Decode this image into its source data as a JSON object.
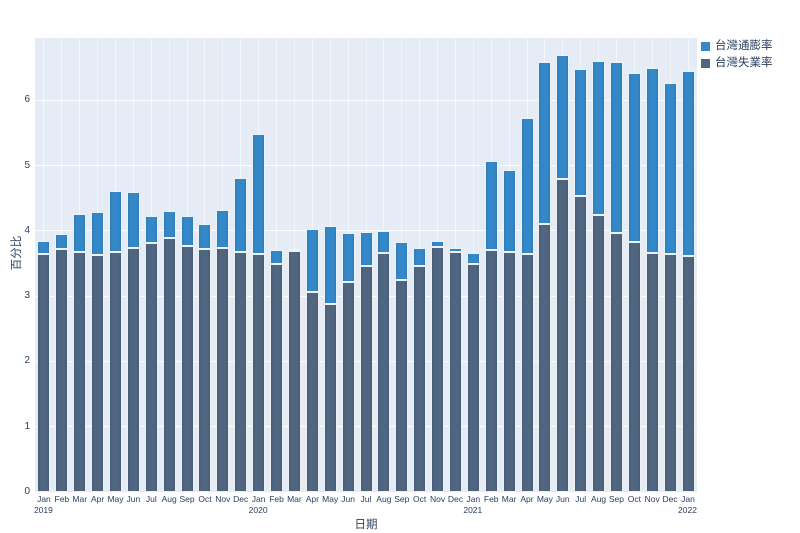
{
  "axes": {
    "x_title": "日期",
    "y_title": "百分比"
  },
  "legend": {
    "items": [
      {
        "label": "台灣通膨率",
        "color": "#3488c8"
      },
      {
        "label": "台灣失業率",
        "color": "#50657f"
      }
    ]
  },
  "chart_data": {
    "type": "bar",
    "barmode": "stack",
    "title": "",
    "xlabel": "日期",
    "ylabel": "百分比",
    "ylim": [
      0,
      6.953
    ],
    "yticks": [
      0,
      1,
      2,
      3,
      4,
      5,
      6
    ],
    "grid": true,
    "legend_position": "top-right-outside",
    "plot_bg": "#e5ecf6",
    "grid_color": "#ffffff",
    "text_color": "#2a3f5f",
    "x": [
      "2019-01",
      "2019-02",
      "2019-03",
      "2019-04",
      "2019-05",
      "2019-06",
      "2019-07",
      "2019-08",
      "2019-09",
      "2019-10",
      "2019-11",
      "2019-12",
      "2020-01",
      "2020-02",
      "2020-03",
      "2020-04",
      "2020-05",
      "2020-06",
      "2020-07",
      "2020-08",
      "2020-09",
      "2020-10",
      "2020-11",
      "2020-12",
      "2021-01",
      "2021-02",
      "2021-03",
      "2021-04",
      "2021-05",
      "2021-06",
      "2021-07",
      "2021-08",
      "2021-09",
      "2021-10",
      "2021-11",
      "2021-12",
      "2022-01"
    ],
    "x_tick_labels": [
      "Jan",
      "Feb",
      "Mar",
      "Apr",
      "May",
      "Jun",
      "Jul",
      "Aug",
      "Sep",
      "Oct",
      "Nov",
      "Dec",
      "Jan",
      "Feb",
      "Mar",
      "Apr",
      "May",
      "Jun",
      "Jul",
      "Aug",
      "Sep",
      "Oct",
      "Nov",
      "Dec",
      "Jan",
      "Feb",
      "Mar",
      "Apr",
      "May",
      "Jun",
      "Jul",
      "Aug",
      "Sep",
      "Oct",
      "Nov",
      "Dec",
      "Jan"
    ],
    "x_year_marks": [
      {
        "index": 0,
        "label": "2019"
      },
      {
        "index": 12,
        "label": "2020"
      },
      {
        "index": 24,
        "label": "2021"
      },
      {
        "index": 36,
        "label": "2022"
      }
    ],
    "series": [
      {
        "name": "台灣通膨率",
        "color": "#3488c8",
        "values": [
          0.2,
          0.23,
          0.58,
          0.66,
          0.94,
          0.86,
          0.4,
          0.42,
          0.45,
          0.39,
          0.59,
          1.14,
          1.85,
          -0.21,
          -0.03,
          -0.97,
          -1.19,
          -0.75,
          -0.52,
          -0.33,
          -0.58,
          -0.28,
          0.09,
          0.06,
          -0.17,
          1.37,
          1.26,
          2.09,
          2.48,
          1.89,
          1.95,
          2.36,
          2.63,
          2.58,
          2.84,
          2.62,
          2.84
        ]
      },
      {
        "name": "台灣失業率",
        "color": "#50657f",
        "values": [
          3.64,
          3.72,
          3.68,
          3.63,
          3.67,
          3.74,
          3.82,
          3.89,
          3.77,
          3.72,
          3.73,
          3.67,
          3.64,
          3.7,
          3.72,
          4.03,
          4.07,
          3.96,
          3.98,
          3.99,
          3.83,
          3.74,
          3.75,
          3.68,
          3.66,
          3.7,
          3.67,
          3.64,
          4.11,
          4.8,
          4.53,
          4.24,
          3.96,
          3.83,
          3.66,
          3.64,
          3.61
        ]
      }
    ],
    "stacking_note": "unemployment drawn from baseline; inflation stacked on top (negative inflation segments overlap downward from the unemployment top)"
  }
}
